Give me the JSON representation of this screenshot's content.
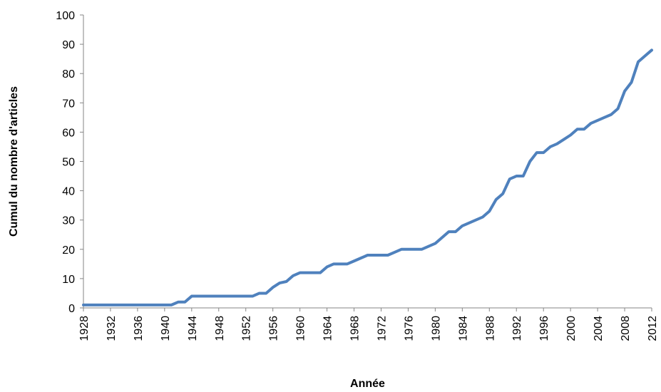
{
  "chart_data": {
    "type": "line",
    "title": "",
    "xlabel": "Année",
    "ylabel": "Cumul du nombre d'articles",
    "xlim": [
      1928,
      2012
    ],
    "ylim": [
      0,
      100
    ],
    "y_ticks": [
      "0",
      "10",
      "20",
      "30",
      "40",
      "50",
      "60",
      "70",
      "80",
      "90",
      "100"
    ],
    "x_ticks": [
      "1928",
      "1932",
      "1936",
      "1940",
      "1944",
      "1948",
      "1952",
      "1956",
      "1960",
      "1964",
      "1968",
      "1972",
      "1976",
      "1980",
      "1984",
      "1988",
      "1992",
      "1996",
      "2000",
      "2004",
      "2008",
      "2012"
    ],
    "grid": false,
    "legend": "none",
    "series_color": "#4F81BD",
    "x": [
      1928,
      1929,
      1930,
      1931,
      1932,
      1933,
      1934,
      1935,
      1936,
      1937,
      1938,
      1939,
      1940,
      1941,
      1942,
      1943,
      1944,
      1945,
      1946,
      1947,
      1948,
      1949,
      1950,
      1951,
      1952,
      1953,
      1954,
      1955,
      1956,
      1957,
      1958,
      1959,
      1960,
      1961,
      1962,
      1963,
      1964,
      1965,
      1966,
      1967,
      1968,
      1969,
      1970,
      1971,
      1972,
      1973,
      1974,
      1975,
      1976,
      1977,
      1978,
      1979,
      1980,
      1981,
      1982,
      1983,
      1984,
      1985,
      1986,
      1987,
      1988,
      1989,
      1990,
      1991,
      1992,
      1993,
      1994,
      1995,
      1996,
      1997,
      1998,
      1999,
      2000,
      2001,
      2002,
      2003,
      2004,
      2005,
      2006,
      2007,
      2008,
      2009,
      2010,
      2011,
      2012
    ],
    "y": [
      1,
      1,
      1,
      1,
      1,
      1,
      1,
      1,
      1,
      1,
      1,
      1,
      1,
      1,
      2,
      2,
      4,
      4,
      4,
      4,
      4,
      4,
      4,
      4,
      4,
      4,
      5,
      5,
      7,
      8.5,
      9,
      11,
      12,
      12,
      12,
      12,
      14,
      15,
      15,
      15,
      16,
      17,
      18,
      18,
      18,
      18,
      19,
      20,
      20,
      20,
      20,
      21,
      22,
      24,
      26,
      26,
      28,
      29,
      30,
      31,
      33,
      37,
      39,
      44,
      45,
      45,
      50,
      53,
      53,
      55,
      56,
      57.5,
      59,
      61,
      61,
      63,
      64,
      65,
      66,
      68,
      74,
      77,
      84,
      86,
      88
    ]
  }
}
